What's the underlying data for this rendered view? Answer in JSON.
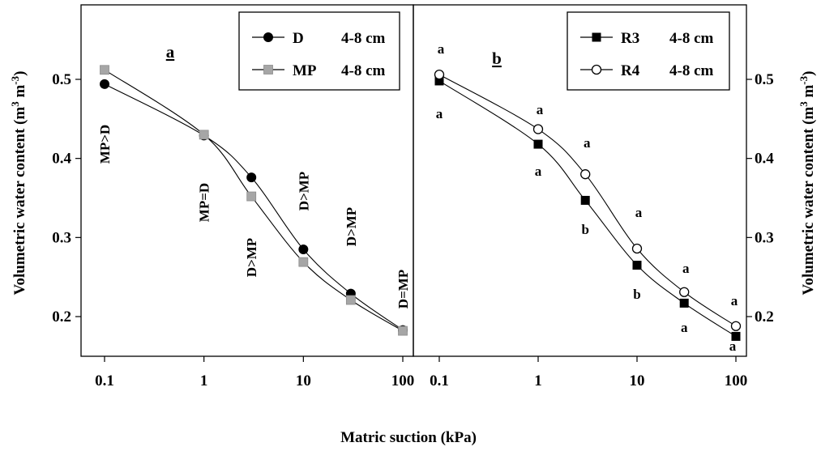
{
  "xlabel": "Matric suction (kPa)",
  "ylabel_left": "Volumetric water content (m3 m-3)",
  "ylabel_right": "Volumetric water content (m3 m-3)",
  "chart_data": [
    {
      "type": "line",
      "panel_label": "a",
      "x_scale": "log",
      "xlim": [
        0.1,
        100
      ],
      "ylim": [
        0.15,
        0.56
      ],
      "x_ticks": [
        "0.1",
        "1",
        "10",
        "100"
      ],
      "y_ticks": [
        "0.2",
        "0.3",
        "0.4",
        "0.5"
      ],
      "legend_position": "top-right",
      "x": [
        0.1,
        1,
        3,
        10,
        30,
        100
      ],
      "series": [
        {
          "name": "D",
          "depth": "4-8 cm",
          "marker": "filled-circle",
          "color": "#000000",
          "values": [
            0.494,
            0.429,
            0.376,
            0.285,
            0.229,
            0.183
          ]
        },
        {
          "name": "MP",
          "depth": "4-8 cm",
          "marker": "grey-square",
          "color": "#a6a6a6",
          "values": [
            0.512,
            0.43,
            0.352,
            0.269,
            0.221,
            0.182
          ]
        }
      ],
      "annotations": [
        {
          "text": "MP>D",
          "x": 0.1
        },
        {
          "text": "MP=D",
          "x": 1
        },
        {
          "text": "D>MP",
          "x": 3
        },
        {
          "text": "D>MP",
          "x": 10
        },
        {
          "text": "D>MP",
          "x": 30
        },
        {
          "text": "D=MP",
          "x": 100
        }
      ]
    },
    {
      "type": "line",
      "panel_label": "b",
      "x_scale": "log",
      "xlim": [
        0.1,
        100
      ],
      "ylim": [
        0.15,
        0.56
      ],
      "x_ticks": [
        "0.1",
        "1",
        "10",
        "100"
      ],
      "y_ticks": [
        "0.2",
        "0.3",
        "0.4",
        "0.5"
      ],
      "y_axis_side": "right",
      "legend_position": "top-right",
      "x": [
        0.1,
        1,
        3,
        10,
        30,
        100
      ],
      "series": [
        {
          "name": "R3",
          "depth": "4-8 cm",
          "marker": "filled-square",
          "color": "#000000",
          "values": [
            0.498,
            0.418,
            0.347,
            0.265,
            0.217,
            0.175
          ]
        },
        {
          "name": "R4",
          "depth": "4-8 cm",
          "marker": "open-circle",
          "color": "#000000",
          "values": [
            0.506,
            0.437,
            0.38,
            0.286,
            0.231,
            0.188
          ]
        }
      ],
      "annotations": [
        {
          "x": 0.1,
          "upper": "a",
          "lower": "a"
        },
        {
          "x": 1,
          "upper": "a",
          "lower": "a"
        },
        {
          "x": 3,
          "upper": "a",
          "lower": "b"
        },
        {
          "x": 10,
          "upper": "a",
          "lower": "b"
        },
        {
          "x": 30,
          "upper": "a",
          "lower": "a"
        },
        {
          "x": 100,
          "upper": "a",
          "lower": "a"
        }
      ]
    }
  ]
}
